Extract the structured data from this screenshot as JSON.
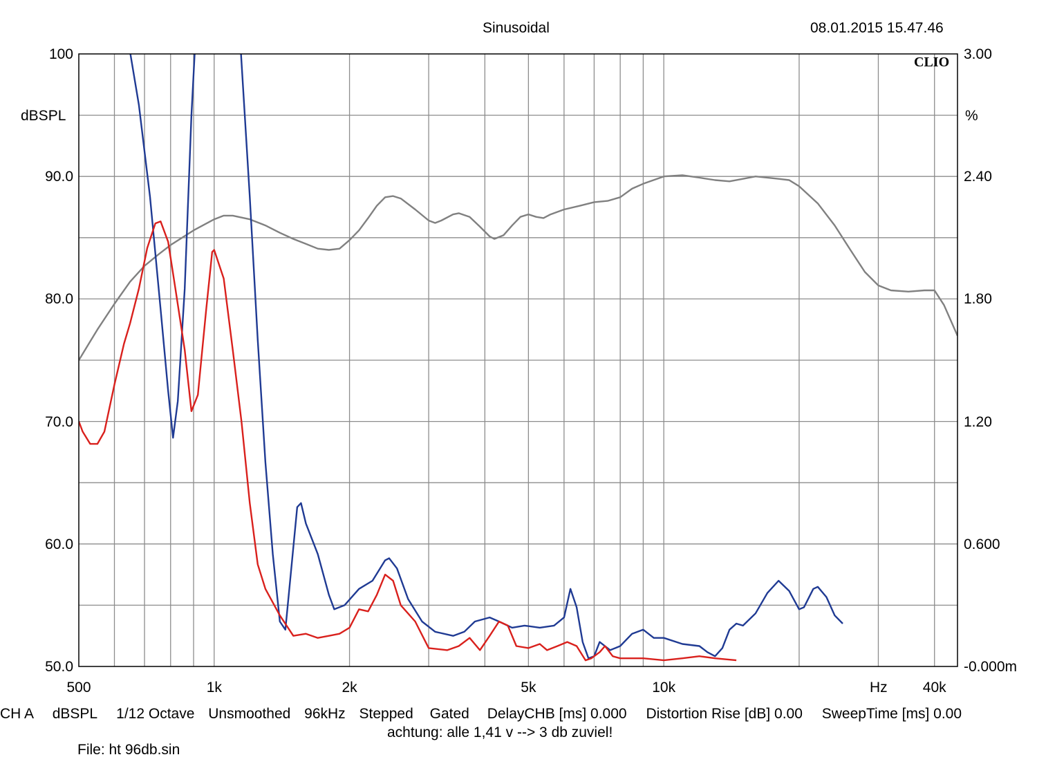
{
  "header": {
    "title": "Sinusoidal",
    "timestamp": "08.01.2015 15.47.46",
    "brand": "CLIO"
  },
  "footer": {
    "settings": [
      "CH A",
      "dBSPL",
      "1/12 Octave",
      "Unsmoothed",
      "96kHz",
      "Stepped",
      "Gated",
      "DelayCHB [ms] 0.000",
      "Distortion Rise [dB] 0.00",
      "SweepTime [ms] 0.00"
    ],
    "note": "achtung: alle 1,41 v --> 3 db zuviel!",
    "file": "File: ht 96db.sin"
  },
  "colors": {
    "grid": "#8c8c8c",
    "frequency_response": "#808080",
    "distortion_blue": "#1f3a93",
    "distortion_red": "#d9201c"
  },
  "chart_data": {
    "type": "line",
    "x_scale": "log",
    "xlim": [
      500,
      45000
    ],
    "x_ticks": [
      {
        "value": 500,
        "label": "500"
      },
      {
        "value": 1000,
        "label": "1k"
      },
      {
        "value": 2000,
        "label": "2k"
      },
      {
        "value": 5000,
        "label": "5k"
      },
      {
        "value": 10000,
        "label": "10k"
      },
      {
        "value": 40000,
        "label": "40k"
      }
    ],
    "x_unit": "Hz",
    "y_left": {
      "unit": "dBSPL",
      "range": [
        50,
        100
      ],
      "ticks": [
        {
          "value": 100,
          "label": "100"
        },
        {
          "value": 90,
          "label": "90.0"
        },
        {
          "value": 80,
          "label": "80.0"
        },
        {
          "value": 70,
          "label": "70.0"
        },
        {
          "value": 60,
          "label": "60.0"
        },
        {
          "value": 50,
          "label": "50.0"
        }
      ]
    },
    "y_right": {
      "unit": "%",
      "range": [
        0,
        3
      ],
      "ticks": [
        {
          "value": 3.0,
          "label": "3.00"
        },
        {
          "value": 2.4,
          "label": "2.40"
        },
        {
          "value": 1.8,
          "label": "1.80"
        },
        {
          "value": 1.2,
          "label": "1.20"
        },
        {
          "value": 0.6,
          "label": "0.600"
        },
        {
          "value": 0.0,
          "label": "-0.000m"
        }
      ]
    },
    "series": [
      {
        "axis": "left",
        "color": "#808080",
        "points": [
          [
            500,
            75
          ],
          [
            550,
            77.5
          ],
          [
            600,
            79.6
          ],
          [
            650,
            81.4
          ],
          [
            700,
            82.7
          ],
          [
            750,
            83.6
          ],
          [
            800,
            84.4
          ],
          [
            900,
            85.6
          ],
          [
            1000,
            86.5
          ],
          [
            1050,
            86.8
          ],
          [
            1100,
            86.8
          ],
          [
            1200,
            86.5
          ],
          [
            1300,
            86
          ],
          [
            1400,
            85.4
          ],
          [
            1500,
            84.9
          ],
          [
            1600,
            84.5
          ],
          [
            1700,
            84.1
          ],
          [
            1800,
            84.0
          ],
          [
            1900,
            84.1
          ],
          [
            2000,
            84.8
          ],
          [
            2100,
            85.6
          ],
          [
            2200,
            86.6
          ],
          [
            2300,
            87.6
          ],
          [
            2400,
            88.3
          ],
          [
            2500,
            88.4
          ],
          [
            2600,
            88.2
          ],
          [
            2800,
            87.3
          ],
          [
            3000,
            86.4
          ],
          [
            3100,
            86.2
          ],
          [
            3200,
            86.4
          ],
          [
            3400,
            86.9
          ],
          [
            3500,
            87.0
          ],
          [
            3700,
            86.7
          ],
          [
            3900,
            85.9
          ],
          [
            4100,
            85.1
          ],
          [
            4200,
            84.9
          ],
          [
            4400,
            85.2
          ],
          [
            4600,
            86.0
          ],
          [
            4800,
            86.7
          ],
          [
            5000,
            86.9
          ],
          [
            5200,
            86.7
          ],
          [
            5400,
            86.6
          ],
          [
            5600,
            86.9
          ],
          [
            6000,
            87.3
          ],
          [
            6500,
            87.6
          ],
          [
            7000,
            87.9
          ],
          [
            7500,
            88.0
          ],
          [
            8000,
            88.3
          ],
          [
            8500,
            89.0
          ],
          [
            9000,
            89.4
          ],
          [
            10000,
            90.0
          ],
          [
            11000,
            90.1
          ],
          [
            12000,
            89.9
          ],
          [
            13000,
            89.7
          ],
          [
            14000,
            89.6
          ],
          [
            15000,
            89.8
          ],
          [
            16000,
            90.0
          ],
          [
            18000,
            89.8
          ],
          [
            19000,
            89.7
          ],
          [
            20000,
            89.2
          ],
          [
            22000,
            87.8
          ],
          [
            24000,
            86.0
          ],
          [
            26000,
            84.0
          ],
          [
            28000,
            82.2
          ],
          [
            30000,
            81.1
          ],
          [
            32000,
            80.7
          ],
          [
            35000,
            80.6
          ],
          [
            38000,
            80.7
          ],
          [
            40000,
            80.7
          ],
          [
            42000,
            79.5
          ],
          [
            45000,
            77
          ]
        ]
      },
      {
        "axis": "right",
        "color": "#1f3a93",
        "points": [
          [
            640,
            3.1
          ],
          [
            680,
            2.75
          ],
          [
            720,
            2.3
          ],
          [
            760,
            1.75
          ],
          [
            790,
            1.35
          ],
          [
            810,
            1.12
          ],
          [
            830,
            1.3
          ],
          [
            860,
            1.85
          ],
          [
            890,
            2.7
          ],
          [
            910,
            3.1
          ],
          [
            1140,
            3.1
          ],
          [
            1200,
            2.3
          ],
          [
            1250,
            1.6
          ],
          [
            1300,
            1.0
          ],
          [
            1350,
            0.55
          ],
          [
            1400,
            0.22
          ],
          [
            1440,
            0.18
          ],
          [
            1480,
            0.45
          ],
          [
            1530,
            0.78
          ],
          [
            1560,
            0.8
          ],
          [
            1600,
            0.7
          ],
          [
            1700,
            0.55
          ],
          [
            1800,
            0.35
          ],
          [
            1850,
            0.28
          ],
          [
            1950,
            0.3
          ],
          [
            2100,
            0.38
          ],
          [
            2250,
            0.42
          ],
          [
            2400,
            0.52
          ],
          [
            2450,
            0.53
          ],
          [
            2550,
            0.48
          ],
          [
            2700,
            0.33
          ],
          [
            2900,
            0.22
          ],
          [
            3100,
            0.17
          ],
          [
            3400,
            0.15
          ],
          [
            3600,
            0.17
          ],
          [
            3800,
            0.22
          ],
          [
            4100,
            0.24
          ],
          [
            4300,
            0.22
          ],
          [
            4600,
            0.19
          ],
          [
            4900,
            0.2
          ],
          [
            5300,
            0.19
          ],
          [
            5700,
            0.2
          ],
          [
            6000,
            0.24
          ],
          [
            6200,
            0.38
          ],
          [
            6400,
            0.29
          ],
          [
            6600,
            0.12
          ],
          [
            6800,
            0.04
          ],
          [
            7000,
            0.05
          ],
          [
            7200,
            0.12
          ],
          [
            7600,
            0.08
          ],
          [
            8000,
            0.1
          ],
          [
            8500,
            0.16
          ],
          [
            9000,
            0.18
          ],
          [
            9500,
            0.14
          ],
          [
            10000,
            0.14
          ],
          [
            11000,
            0.11
          ],
          [
            12000,
            0.1
          ],
          [
            12500,
            0.07
          ],
          [
            13000,
            0.05
          ],
          [
            13500,
            0.09
          ],
          [
            14000,
            0.18
          ],
          [
            14500,
            0.21
          ],
          [
            15000,
            0.2
          ],
          [
            16000,
            0.26
          ],
          [
            17000,
            0.36
          ],
          [
            18000,
            0.42
          ],
          [
            19000,
            0.37
          ],
          [
            20000,
            0.28
          ],
          [
            20500,
            0.29
          ],
          [
            21500,
            0.38
          ],
          [
            22000,
            0.39
          ],
          [
            23000,
            0.34
          ],
          [
            24000,
            0.25
          ],
          [
            25000,
            0.21
          ]
        ]
      },
      {
        "axis": "right",
        "color": "#d9201c",
        "points": [
          [
            500,
            1.2
          ],
          [
            510,
            1.15
          ],
          [
            530,
            1.09
          ],
          [
            550,
            1.09
          ],
          [
            570,
            1.15
          ],
          [
            600,
            1.38
          ],
          [
            630,
            1.58
          ],
          [
            650,
            1.68
          ],
          [
            680,
            1.85
          ],
          [
            710,
            2.05
          ],
          [
            740,
            2.17
          ],
          [
            760,
            2.18
          ],
          [
            790,
            2.08
          ],
          [
            820,
            1.85
          ],
          [
            860,
            1.55
          ],
          [
            890,
            1.25
          ],
          [
            920,
            1.33
          ],
          [
            960,
            1.75
          ],
          [
            990,
            2.03
          ],
          [
            1000,
            2.04
          ],
          [
            1050,
            1.9
          ],
          [
            1100,
            1.55
          ],
          [
            1150,
            1.2
          ],
          [
            1200,
            0.8
          ],
          [
            1250,
            0.5
          ],
          [
            1300,
            0.38
          ],
          [
            1400,
            0.25
          ],
          [
            1500,
            0.15
          ],
          [
            1600,
            0.16
          ],
          [
            1700,
            0.14
          ],
          [
            1800,
            0.15
          ],
          [
            1900,
            0.16
          ],
          [
            2000,
            0.19
          ],
          [
            2100,
            0.28
          ],
          [
            2200,
            0.27
          ],
          [
            2300,
            0.35
          ],
          [
            2400,
            0.45
          ],
          [
            2500,
            0.42
          ],
          [
            2600,
            0.3
          ],
          [
            2800,
            0.22
          ],
          [
            3000,
            0.09
          ],
          [
            3300,
            0.08
          ],
          [
            3500,
            0.1
          ],
          [
            3700,
            0.14
          ],
          [
            3900,
            0.08
          ],
          [
            4100,
            0.15
          ],
          [
            4300,
            0.22
          ],
          [
            4500,
            0.2
          ],
          [
            4700,
            0.1
          ],
          [
            5000,
            0.09
          ],
          [
            5300,
            0.11
          ],
          [
            5500,
            0.08
          ],
          [
            5800,
            0.1
          ],
          [
            6100,
            0.12
          ],
          [
            6400,
            0.1
          ],
          [
            6700,
            0.03
          ],
          [
            6900,
            0.04
          ],
          [
            7200,
            0.07
          ],
          [
            7400,
            0.1
          ],
          [
            7700,
            0.05
          ],
          [
            8000,
            0.04
          ],
          [
            9000,
            0.04
          ],
          [
            10000,
            0.03
          ],
          [
            11000,
            0.04
          ],
          [
            12000,
            0.05
          ],
          [
            13000,
            0.04
          ],
          [
            14500,
            0.03
          ]
        ]
      }
    ]
  }
}
